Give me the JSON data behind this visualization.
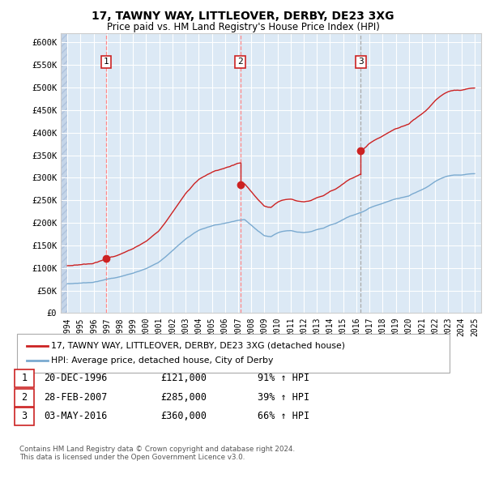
{
  "title": "17, TAWNY WAY, LITTLEOVER, DERBY, DE23 3XG",
  "subtitle": "Price paid vs. HM Land Registry's House Price Index (HPI)",
  "legend_line1": "17, TAWNY WAY, LITTLEOVER, DERBY, DE23 3XG (detached house)",
  "legend_line2": "HPI: Average price, detached house, City of Derby",
  "sale_dates": [
    "20-DEC-1996",
    "28-FEB-2007",
    "03-MAY-2016"
  ],
  "sale_prices": [
    121000,
    285000,
    360000
  ],
  "sale_prices_str": [
    "£121,000",
    "£285,000",
    "£360,000"
  ],
  "sale_hpi": [
    "91% ↑ HPI",
    "39% ↑ HPI",
    "66% ↑ HPI"
  ],
  "sale_years": [
    1996.97,
    2007.16,
    2016.34
  ],
  "vline_colors": [
    "#ff8888",
    "#ff8888",
    "#aaaaaa"
  ],
  "vline_styles": [
    "--",
    "--",
    "--"
  ],
  "ylim": [
    0,
    620000
  ],
  "yticks": [
    0,
    50000,
    100000,
    150000,
    200000,
    250000,
    300000,
    350000,
    400000,
    450000,
    500000,
    550000,
    600000
  ],
  "ytick_labels": [
    "£0",
    "£50K",
    "£100K",
    "£150K",
    "£200K",
    "£250K",
    "£300K",
    "£350K",
    "£400K",
    "£450K",
    "£500K",
    "£550K",
    "£600K"
  ],
  "xlim_start": 1993.5,
  "xlim_end": 2025.5,
  "background_color": "#dce9f5",
  "hatch_color": "#c5d5e8",
  "grid_color": "#ffffff",
  "red_line_color": "#cc2222",
  "blue_line_color": "#7aaad0",
  "sale_marker_color": "#cc2222",
  "footer_text": "Contains HM Land Registry data © Crown copyright and database right 2024.\nThis data is licensed under the Open Government Licence v3.0."
}
